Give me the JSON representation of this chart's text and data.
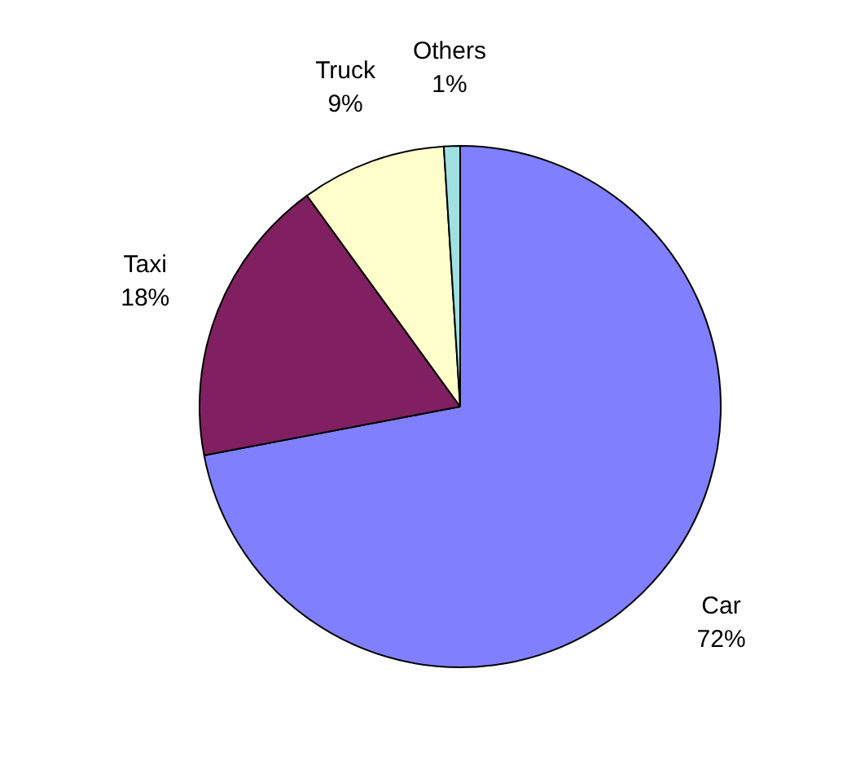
{
  "chart_data": {
    "type": "pie",
    "categories": [
      "Car",
      "Taxi",
      "Truck",
      "Others"
    ],
    "values": [
      72,
      18,
      9,
      1
    ],
    "colors": [
      "#8080ff",
      "#802060",
      "#ffffcc",
      "#a0e0e0"
    ],
    "value_labels": [
      "72%",
      "18%",
      "9%",
      "1%"
    ]
  }
}
